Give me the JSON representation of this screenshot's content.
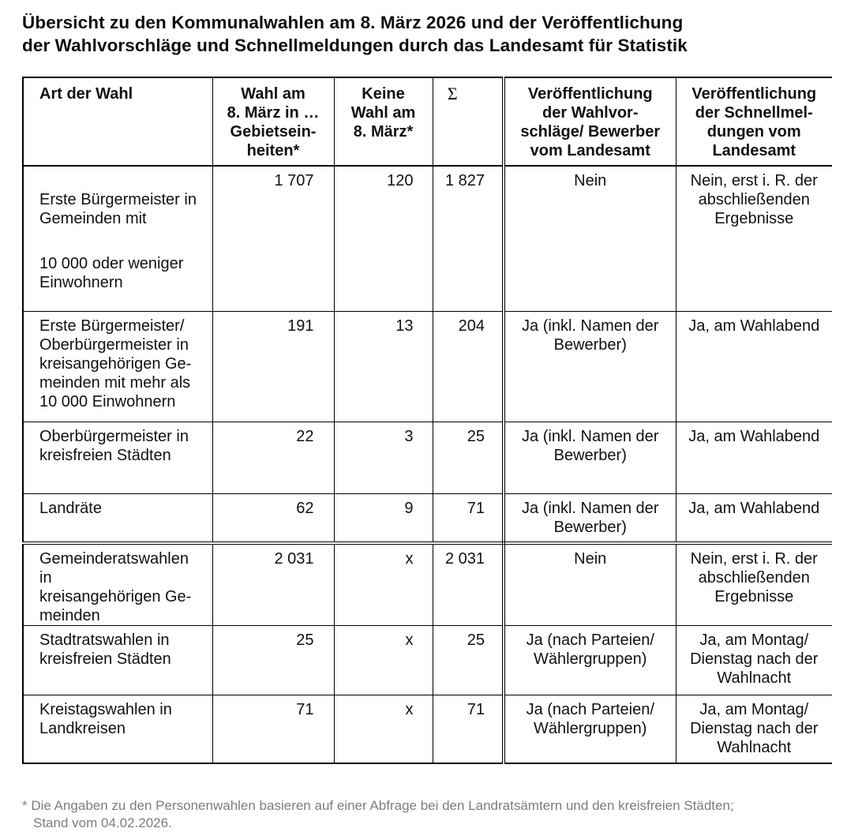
{
  "title": {
    "line1": "Übersicht zu den Kommunalwahlen am 8. März 2026 und der Veröffentlichung",
    "line2": "der Wahlvorschläge und Schnellmeldungen durch das Landesamt für Statistik"
  },
  "table": {
    "columns": {
      "art": "Art der Wahl",
      "wahl": "Wahl am\n8. März in …\nGebietsein-\nheiten*",
      "keine": "Keine\nWahl am\n8. März*",
      "sum": "Σ",
      "veroeff_wv": "Veröffentlichung\nder Wahlvor-\nschläge/ Bewerber\nvom Landesamt",
      "veroeff_sm": "Veröffentlichung\nder Schnellmel-\ndungen vom\nLandesamt"
    },
    "rows": [
      {
        "art": "Erste Bürgermeister in\nGemeinden mit",
        "art2": "10 000 oder weniger\nEinwohnern",
        "wahl": "1 707",
        "keine": "120",
        "sum": "1 827",
        "veroeff_wv": "Nein",
        "veroeff_sm": "Nein, erst i. R. der\nabschließenden\nErgebnisse"
      },
      {
        "art": "Erste Bürgermeister/\nOberbürgermeister in\nkreisangehörigen Ge-\nmeinden mit mehr als\n10 000 Einwohnern",
        "wahl": "191",
        "keine": "13",
        "sum": "204",
        "veroeff_wv": "Ja (inkl. Namen der\nBewerber)",
        "veroeff_sm": "Ja, am Wahlabend"
      },
      {
        "art": "Oberbürgermeister in\nkreisfreien Städten",
        "wahl": "22",
        "keine": "3",
        "sum": "25",
        "veroeff_wv": "Ja (inkl. Namen der\nBewerber)",
        "veroeff_sm": "Ja, am Wahlabend"
      },
      {
        "art": "Landräte",
        "wahl": "62",
        "keine": "9",
        "sum": "71",
        "veroeff_wv": "Ja (inkl. Namen der\nBewerber)",
        "veroeff_sm": "Ja, am Wahlabend"
      },
      {
        "art": "Gemeinderatswahlen in\nkreisangehörigen Ge-\nmeinden",
        "wahl": "2 031",
        "keine": "x",
        "sum": "2 031",
        "veroeff_wv": "Nein",
        "veroeff_sm": "Nein, erst i. R. der\nabschließenden\nErgebnisse"
      },
      {
        "art": "Stadtratswahlen in\nkreisfreien Städten",
        "wahl": "25",
        "keine": "x",
        "sum": "25",
        "veroeff_wv": "Ja (nach Parteien/\nWählergruppen)",
        "veroeff_sm": "Ja, am Montag/\nDienstag nach der\nWahlnacht"
      },
      {
        "art": "Kreistagswahlen in\nLandkreisen",
        "wahl": "71",
        "keine": "x",
        "sum": "71",
        "veroeff_wv": "Ja (nach Parteien/\nWählergruppen)",
        "veroeff_sm": "Ja, am Montag/\nDienstag nach der\nWahlnacht"
      }
    ]
  },
  "footnote": {
    "line1": "* Die Angaben zu den Personenwahlen basieren auf einer Abfrage bei den Landratsämtern und den kreisfreien Städten;",
    "line2": "Stand vom 04.02.2026."
  },
  "colors": {
    "text": "#111111",
    "footnote_text": "#7d7d7d",
    "border": "#000000",
    "background": "#ffffff"
  }
}
